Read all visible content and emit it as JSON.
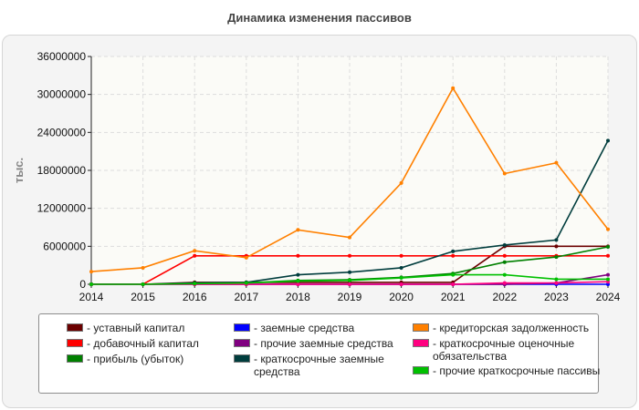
{
  "chart_data": {
    "type": "line",
    "title": "Динамика изменения пассивов",
    "ylabel": "тыс.",
    "xlabel": "",
    "x": [
      2014,
      2015,
      2016,
      2017,
      2018,
      2019,
      2020,
      2021,
      2022,
      2023,
      2024
    ],
    "xticks": [
      "2014",
      "2015",
      "2016",
      "2017",
      "2018",
      "2019",
      "2020",
      "2021",
      "2022",
      "2023",
      "2024"
    ],
    "ylim": [
      0,
      36000000
    ],
    "yticks": [
      "0",
      "6000000",
      "12000000",
      "18000000",
      "24000000",
      "30000000",
      "36000000"
    ],
    "grid": true,
    "legend_position": "bottom",
    "series": [
      {
        "name": "уставный капитал",
        "color": "#6b0000",
        "values": [
          0,
          0,
          300000,
          300000,
          300000,
          300000,
          300000,
          300000,
          6000000,
          6000000,
          6000000
        ]
      },
      {
        "name": "добавочный капитал",
        "color": "#ff0000",
        "values": [
          0,
          0,
          4500000,
          4500000,
          4500000,
          4500000,
          4500000,
          4500000,
          4500000,
          4500000,
          4500000
        ]
      },
      {
        "name": "прибыль (убыток)",
        "color": "#008000",
        "values": [
          0,
          0,
          100000,
          200000,
          600000,
          700000,
          1100000,
          1700000,
          3500000,
          4300000,
          5900000
        ]
      },
      {
        "name": "заемные средства",
        "color": "#0000ff",
        "values": [
          0,
          0,
          0,
          0,
          0,
          0,
          0,
          0,
          0,
          0,
          0
        ]
      },
      {
        "name": "прочие заемные средства",
        "color": "#800080",
        "values": [
          0,
          0,
          0,
          0,
          0,
          0,
          0,
          0,
          0,
          200000,
          1500000
        ]
      },
      {
        "name": "краткосрочные заемные средства",
        "color": "#003d3d",
        "values": [
          0,
          0,
          200000,
          300000,
          1500000,
          1900000,
          2600000,
          5200000,
          6200000,
          7000000,
          22700000
        ]
      },
      {
        "name": "кредиторская задолженность",
        "color": "#ff8000",
        "values": [
          2000000,
          2600000,
          5300000,
          4200000,
          8600000,
          7400000,
          16000000,
          31000000,
          17500000,
          19200000,
          8700000
        ]
      },
      {
        "name": "краткосрочные оценочные обязательства",
        "color": "#ff0080",
        "values": [
          0,
          0,
          0,
          0,
          0,
          0,
          0,
          0,
          200000,
          200000,
          400000
        ]
      },
      {
        "name": "прочие краткосрочные пассивы",
        "color": "#00c000",
        "values": [
          0,
          0,
          100000,
          200000,
          500000,
          600000,
          1000000,
          1500000,
          1500000,
          800000,
          800000
        ]
      }
    ]
  }
}
